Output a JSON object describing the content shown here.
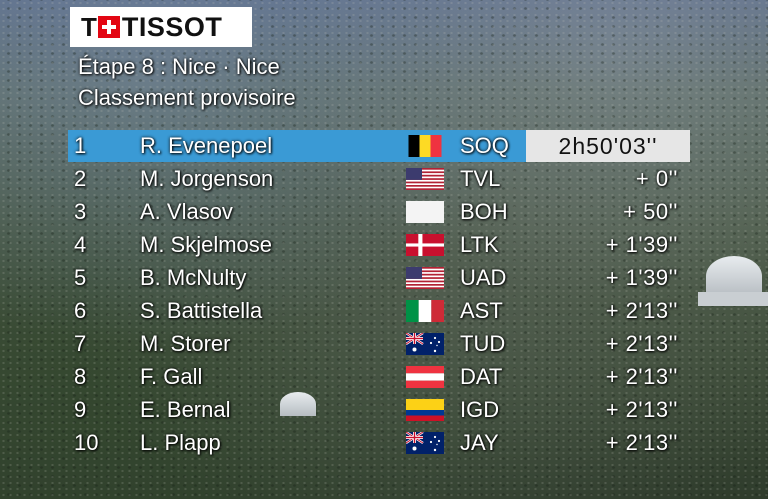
{
  "logo": {
    "brand": "TISSOT",
    "mark": "T"
  },
  "header": {
    "stage": "Étape 8 : Nice · Nice",
    "subtitle": "Classement provisoire"
  },
  "colors": {
    "leader_bar": "#3a9ad5",
    "time_box": "#e6e6e6",
    "logo_red": "#e30613"
  },
  "rows": [
    {
      "pos": "1",
      "name": "R. Evenepoel",
      "flag": "belgium-flag-icon",
      "team": "SOQ",
      "time": "2h50'03''"
    },
    {
      "pos": "2",
      "name": "M. Jorgenson",
      "flag": "usa-flag-icon",
      "team": "TVL",
      "time": "+ 0''"
    },
    {
      "pos": "3",
      "name": "A. Vlasov",
      "flag": "white-flag-icon",
      "team": "BOH",
      "time": "+ 50''"
    },
    {
      "pos": "4",
      "name": "M. Skjelmose",
      "flag": "denmark-flag-icon",
      "team": "LTK",
      "time": "+ 1'39''"
    },
    {
      "pos": "5",
      "name": "B. McNulty",
      "flag": "usa-flag-icon",
      "team": "UAD",
      "time": "+ 1'39''"
    },
    {
      "pos": "6",
      "name": "S. Battistella",
      "flag": "italy-flag-icon",
      "team": "AST",
      "time": "+ 2'13''"
    },
    {
      "pos": "7",
      "name": "M. Storer",
      "flag": "australia-flag-icon",
      "team": "TUD",
      "time": "+ 2'13''"
    },
    {
      "pos": "8",
      "name": "F. Gall",
      "flag": "austria-flag-icon",
      "team": "DAT",
      "time": "+ 2'13''"
    },
    {
      "pos": "9",
      "name": "E. Bernal",
      "flag": "colombia-flag-icon",
      "team": "IGD",
      "time": "+ 2'13''"
    },
    {
      "pos": "10",
      "name": "L. Plapp",
      "flag": "australia-flag-icon",
      "team": "JAY",
      "time": "+ 2'13''"
    }
  ]
}
